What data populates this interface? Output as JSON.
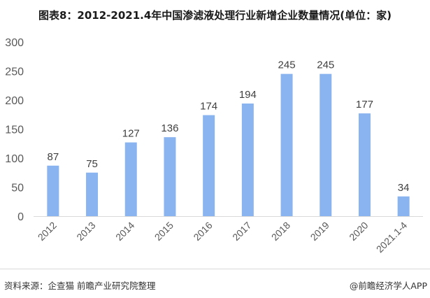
{
  "title": "图表8：2012-2021.4年中国渗滤液处理行业新增企业数量情况(单位：家)",
  "chart_data": {
    "type": "bar",
    "categories": [
      "2012",
      "2013",
      "2014",
      "2015",
      "2016",
      "2017",
      "2018",
      "2019",
      "2020",
      "2021.1-4"
    ],
    "values": [
      87,
      75,
      127,
      136,
      174,
      194,
      245,
      245,
      177,
      34
    ],
    "ylim": [
      0,
      300
    ],
    "yticks": [
      0,
      50,
      100,
      150,
      200,
      250,
      300
    ],
    "grid": false,
    "bar_color": "#8ab4f0",
    "data_labels": true
  },
  "footer": {
    "source": "资料来源：企查猫 前瞻产业研究院整理",
    "brand": "@前瞻经济学人APP"
  }
}
